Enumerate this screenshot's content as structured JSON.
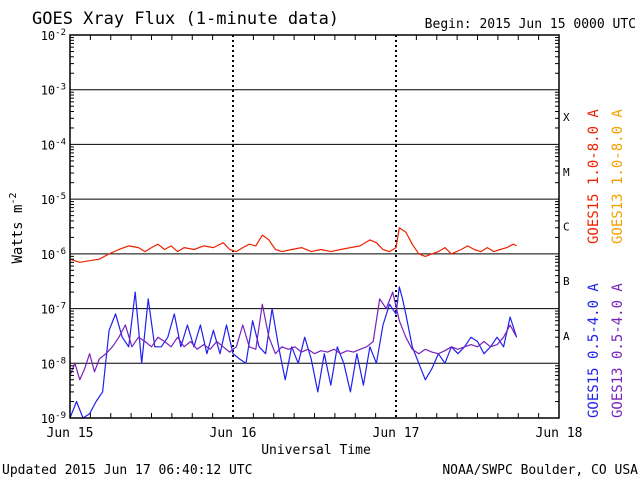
{
  "chart_data": {
    "type": "line",
    "title": "GOES Xray Flux (1-minute data)",
    "begin_label": "Begin:  2015 Jun 15 0000 UTC",
    "xlabel": "Universal Time",
    "ylabel_main": "Watts m",
    "ylabel_sup": "-2",
    "footer_left": "Updated 2015 Jun 17 06:40:12 UTC",
    "footer_right": "NOAA/SWPC Boulder, CO USA",
    "x_scale": "time",
    "x_range_days": [
      0,
      3
    ],
    "x_ticks": [
      "Jun 15",
      "Jun 16",
      "Jun 17",
      "Jun 18"
    ],
    "y_scale": "log",
    "ylim": [
      1e-09,
      0.01
    ],
    "y_ticks": [
      {
        "base": "10",
        "exp": "-9"
      },
      {
        "base": "10",
        "exp": "-8"
      },
      {
        "base": "10",
        "exp": "-7"
      },
      {
        "base": "10",
        "exp": "-6"
      },
      {
        "base": "10",
        "exp": "-5"
      },
      {
        "base": "10",
        "exp": "-4"
      },
      {
        "base": "10",
        "exp": "-3"
      },
      {
        "base": "10",
        "exp": "-2"
      }
    ],
    "flare_classes": [
      {
        "label": "A",
        "value": 1e-08
      },
      {
        "label": "B",
        "value": 1e-07
      },
      {
        "label": "C",
        "value": 1e-06
      },
      {
        "label": "M",
        "value": 1e-05
      },
      {
        "label": "X",
        "value": 0.0001
      }
    ],
    "legend_placement": "right",
    "legend": [
      {
        "label": "GOES15 1.0-8.0 A",
        "color": "#ee2200"
      },
      {
        "label": "GOES13 1.0-8.0 A",
        "color": "#f4a000"
      },
      {
        "label": "GOES15 0.5-4.0 A",
        "color": "#2020ee"
      },
      {
        "label": "GOES13 0.5-4.0 A",
        "color": "#7722bb"
      }
    ],
    "series": [
      {
        "name": "GOES15 1.0-8.0 A",
        "color": "#ee2200",
        "x": [
          0.0,
          0.06,
          0.12,
          0.18,
          0.24,
          0.3,
          0.36,
          0.42,
          0.46,
          0.5,
          0.54,
          0.58,
          0.62,
          0.66,
          0.7,
          0.76,
          0.82,
          0.88,
          0.94,
          0.98,
          1.02,
          1.06,
          1.1,
          1.14,
          1.18,
          1.22,
          1.26,
          1.3,
          1.36,
          1.42,
          1.48,
          1.54,
          1.6,
          1.66,
          1.72,
          1.78,
          1.84,
          1.88,
          1.92,
          1.96,
          2.0,
          2.02,
          2.06,
          2.1,
          2.14,
          2.18,
          2.22,
          2.26,
          2.3,
          2.34,
          2.4,
          2.44,
          2.48,
          2.52,
          2.56,
          2.6,
          2.64,
          2.68,
          2.72,
          2.74
        ],
        "y": [
          8e-07,
          7e-07,
          7.5e-07,
          8e-07,
          1e-06,
          1.2e-06,
          1.4e-06,
          1.3e-06,
          1.1e-06,
          1.3e-06,
          1.5e-06,
          1.2e-06,
          1.4e-06,
          1.1e-06,
          1.3e-06,
          1.2e-06,
          1.4e-06,
          1.3e-06,
          1.6e-06,
          1.2e-06,
          1.1e-06,
          1.3e-06,
          1.5e-06,
          1.4e-06,
          2.2e-06,
          1.8e-06,
          1.2e-06,
          1.1e-06,
          1.2e-06,
          1.3e-06,
          1.1e-06,
          1.2e-06,
          1.1e-06,
          1.2e-06,
          1.3e-06,
          1.4e-06,
          1.8e-06,
          1.6e-06,
          1.2e-06,
          1.1e-06,
          1.3e-06,
          3e-06,
          2.5e-06,
          1.5e-06,
          1e-06,
          9e-07,
          1e-06,
          1.1e-06,
          1.3e-06,
          1e-06,
          1.2e-06,
          1.4e-06,
          1.2e-06,
          1.1e-06,
          1.3e-06,
          1.1e-06,
          1.2e-06,
          1.3e-06,
          1.5e-06,
          1.4e-06
        ]
      },
      {
        "name": "GOES15 0.5-4.0 A",
        "color": "#2020ee",
        "x": [
          0.0,
          0.04,
          0.08,
          0.12,
          0.16,
          0.2,
          0.24,
          0.28,
          0.32,
          0.36,
          0.4,
          0.44,
          0.48,
          0.52,
          0.56,
          0.6,
          0.64,
          0.68,
          0.72,
          0.76,
          0.8,
          0.84,
          0.88,
          0.92,
          0.96,
          1.0,
          1.04,
          1.08,
          1.12,
          1.16,
          1.2,
          1.24,
          1.28,
          1.32,
          1.36,
          1.4,
          1.44,
          1.48,
          1.52,
          1.56,
          1.6,
          1.64,
          1.68,
          1.72,
          1.76,
          1.8,
          1.84,
          1.88,
          1.92,
          1.96,
          2.0,
          2.02,
          2.04,
          2.06,
          2.08,
          2.1,
          2.14,
          2.18,
          2.22,
          2.26,
          2.3,
          2.34,
          2.38,
          2.42,
          2.46,
          2.5,
          2.54,
          2.58,
          2.62,
          2.66,
          2.7,
          2.74
        ],
        "y": [
          1e-09,
          2e-09,
          1e-09,
          1.2e-09,
          2e-09,
          3e-09,
          4e-08,
          8e-08,
          3e-08,
          2e-08,
          2e-07,
          1e-08,
          1.5e-07,
          2e-08,
          2e-08,
          3e-08,
          8e-08,
          2e-08,
          5e-08,
          2e-08,
          5e-08,
          1.5e-08,
          4e-08,
          1.5e-08,
          5e-08,
          1.5e-08,
          1.2e-08,
          1e-08,
          6e-08,
          2e-08,
          1.5e-08,
          1e-07,
          2e-08,
          5e-09,
          2e-08,
          1e-08,
          3e-08,
          1.2e-08,
          3e-09,
          1.5e-08,
          4e-09,
          2e-08,
          1e-08,
          3e-09,
          1.5e-08,
          4e-09,
          2e-08,
          1e-08,
          5e-08,
          1.2e-07,
          8e-08,
          2.5e-07,
          1.5e-07,
          8e-08,
          4e-08,
          2e-08,
          1e-08,
          5e-09,
          8e-09,
          1.5e-08,
          1e-08,
          2e-08,
          1.5e-08,
          2e-08,
          3e-08,
          2.5e-08,
          1.5e-08,
          2e-08,
          3e-08,
          2e-08,
          7e-08,
          3e-08
        ]
      },
      {
        "name": "GOES13 0.5-4.0 A",
        "color": "#7722bb",
        "x": [
          0.0,
          0.03,
          0.06,
          0.09,
          0.12,
          0.15,
          0.18,
          0.22,
          0.26,
          0.3,
          0.34,
          0.38,
          0.42,
          0.46,
          0.5,
          0.54,
          0.58,
          0.62,
          0.66,
          0.7,
          0.74,
          0.78,
          0.82,
          0.86,
          0.9,
          0.94,
          0.98,
          1.02,
          1.06,
          1.1,
          1.14,
          1.18,
          1.22,
          1.26,
          1.3,
          1.34,
          1.38,
          1.42,
          1.46,
          1.5,
          1.54,
          1.58,
          1.62,
          1.66,
          1.7,
          1.74,
          1.78,
          1.82,
          1.86,
          1.9,
          1.94,
          1.98,
          2.02,
          2.06,
          2.1,
          2.14,
          2.18,
          2.22,
          2.26,
          2.3,
          2.34,
          2.38,
          2.42,
          2.46,
          2.5,
          2.54,
          2.58,
          2.62,
          2.66,
          2.7,
          2.74
        ],
        "y": [
          6e-09,
          1e-08,
          5e-09,
          8e-09,
          1.5e-08,
          7e-09,
          1.2e-08,
          1.5e-08,
          2e-08,
          3e-08,
          5e-08,
          2e-08,
          3e-08,
          2.5e-08,
          2e-08,
          3e-08,
          2.5e-08,
          2e-08,
          3e-08,
          2e-08,
          2.5e-08,
          1.8e-08,
          2.2e-08,
          1.8e-08,
          2.5e-08,
          2e-08,
          1.6e-08,
          2e-08,
          5e-08,
          2e-08,
          1.8e-08,
          1.2e-07,
          3e-08,
          1.5e-08,
          2e-08,
          1.8e-08,
          2e-08,
          1.6e-08,
          1.8e-08,
          1.5e-08,
          1.7e-08,
          1.6e-08,
          1.8e-08,
          1.5e-08,
          1.7e-08,
          1.6e-08,
          1.8e-08,
          2e-08,
          2.5e-08,
          1.5e-07,
          1e-07,
          2e-07,
          6e-08,
          3e-08,
          1.8e-08,
          1.5e-08,
          1.8e-08,
          1.6e-08,
          1.5e-08,
          1.7e-08,
          2e-08,
          1.8e-08,
          2e-08,
          2.2e-08,
          2e-08,
          2.5e-08,
          2e-08,
          2.2e-08,
          3e-08,
          5e-08,
          3e-08
        ]
      }
    ]
  }
}
